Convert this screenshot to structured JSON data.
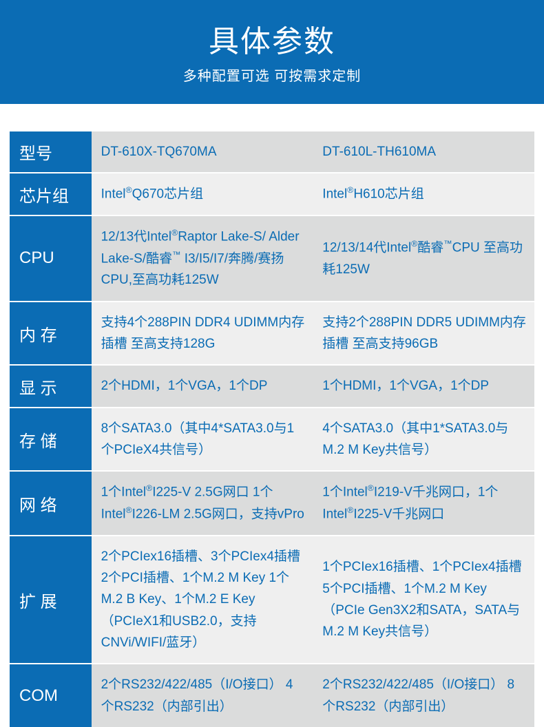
{
  "header": {
    "title": "具体参数",
    "subtitle": "多种配置可选 可按需求定制"
  },
  "colors": {
    "brand": "#0b6cb4",
    "row_alt_a": "#dbdcdc",
    "row_alt_b": "#efefef",
    "text_on_brand": "#ffffff"
  },
  "table": {
    "rows": [
      {
        "label": "型号",
        "label_spaced": false,
        "col1": "DT-610X-TQ670MA",
        "col2": "DT-610L-TH610MA",
        "shade": "a"
      },
      {
        "label": "芯片组",
        "label_spaced": false,
        "col1": "Intel®Q670芯片组",
        "col2": "Intel®H610芯片组",
        "shade": "b"
      },
      {
        "label": "CPU",
        "label_spaced": false,
        "col1": "12/13代Intel®Raptor Lake-S/ Alder Lake-S/酷睿™ I3/I5/I7/奔腾/赛扬CPU,至高功耗125W",
        "col2": "12/13/14代Intel®酷睿™CPU 至高功耗125W",
        "shade": "a"
      },
      {
        "label": "内 存",
        "label_spaced": false,
        "col1": "支持4个288PIN DDR4 UDIMM内存插槽 至高支持128G",
        "col2": "支持2个288PIN DDR5 UDIMM内存插槽 至高支持96GB",
        "shade": "b"
      },
      {
        "label": "显 示",
        "label_spaced": false,
        "col1": "2个HDMI，1个VGA，1个DP",
        "col2": "1个HDMI，1个VGA，1个DP",
        "shade": "a"
      },
      {
        "label": "存 储",
        "label_spaced": false,
        "col1": "8个SATA3.0（其中4*SATA3.0与1个PCIeX4共信号）",
        "col2": "4个SATA3.0（其中1*SATA3.0与M.2 M Key共信号）",
        "shade": "b"
      },
      {
        "label": "网 络",
        "label_spaced": false,
        "col1": "1个Intel®I225-V 2.5G网口 1个Intel®I226-LM 2.5G网口，支持vPro",
        "col2": "1个Intel®I219-V千兆网口，1个Intel®I225-V千兆网口",
        "shade": "a"
      },
      {
        "label": "扩 展",
        "label_spaced": false,
        "col1": "2个PCIex16插槽、3个PCIex4插槽 2个PCI插槽、1个M.2 M Key 1个M.2 B Key、1个M.2 E Key（PCIeX1和USB2.0，支持CNVi/WIFI/蓝牙）",
        "col2": "1个PCIex16插槽、1个PCIex4插槽 5个PCI插槽、1个M.2 M Key（PCIe Gen3X2和SATA，SATA与M.2 M Key共信号）",
        "shade": "b"
      },
      {
        "label": "COM",
        "label_spaced": false,
        "col1": "2个RS232/422/485（I/O接口） 4个RS232（内部引出）",
        "col2": "2个RS232/422/485（I/O接口） 8个RS232（内部引出）",
        "shade": "a"
      }
    ]
  }
}
